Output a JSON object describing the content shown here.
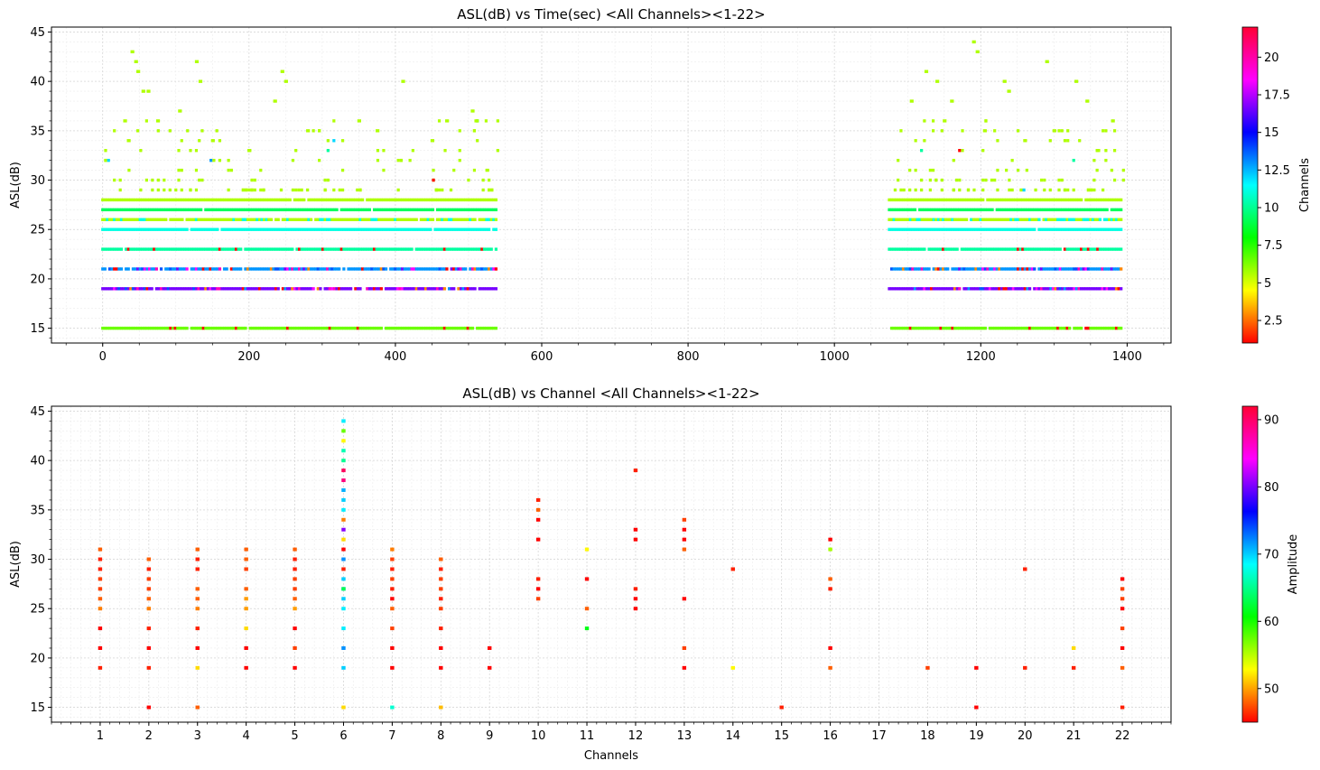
{
  "chart_data": [
    {
      "type": "scatter",
      "title": "ASL(dB) vs Time(sec) <All Channels><1-22>",
      "xlabel": "",
      "ylabel": "ASL(dB)",
      "xlim": [
        -70,
        1460
      ],
      "ylim": [
        13.5,
        45.5
      ],
      "x_ticks": [
        0,
        200,
        400,
        600,
        800,
        1000,
        1200,
        1400
      ],
      "y_ticks": [
        15,
        20,
        25,
        30,
        35,
        40,
        45
      ],
      "grid": true,
      "colorbar": {
        "label": "Channels",
        "min": 1,
        "max": 22,
        "ticks": [
          2.5,
          5.0,
          7.5,
          10.0,
          12.5,
          15.0,
          17.5,
          20.0
        ],
        "cmap": "hsv"
      },
      "bands": [
        {
          "asl": 15,
          "channel": 7,
          "segments": [
            [
              0,
              540
            ],
            [
              1075,
              1395
            ]
          ]
        },
        {
          "asl": 19,
          "channel": 18,
          "segments": [
            [
              0,
              540
            ],
            [
              1075,
              1395
            ]
          ]
        },
        {
          "asl": 21,
          "channel": 14,
          "segments": [
            [
              0,
              540
            ],
            [
              1075,
              1395
            ]
          ]
        },
        {
          "asl": 23,
          "channel": 11,
          "segments": [
            [
              0,
              540
            ],
            [
              1075,
              1395
            ]
          ]
        },
        {
          "asl": 25,
          "channel": 12,
          "segments": [
            [
              0,
              540
            ],
            [
              1075,
              1395
            ]
          ]
        },
        {
          "asl": 26,
          "channel": 6,
          "segments": [
            [
              0,
              540
            ],
            [
              1075,
              1395
            ]
          ]
        },
        {
          "asl": 27,
          "channel": 10,
          "segments": [
            [
              0,
              540
            ],
            [
              1075,
              1395
            ]
          ]
        },
        {
          "asl": 28,
          "channel": 6,
          "segments": [
            [
              0,
              540
            ],
            [
              1075,
              1395
            ]
          ]
        }
      ],
      "peaks": [
        [
          40,
          43
        ],
        [
          45,
          42
        ],
        [
          48,
          41
        ],
        [
          55,
          39
        ],
        [
          62,
          39
        ],
        [
          128,
          42
        ],
        [
          133,
          40
        ],
        [
          245,
          41
        ],
        [
          250,
          40
        ],
        [
          410,
          40
        ],
        [
          505,
          37
        ],
        [
          510,
          36
        ],
        [
          1105,
          38
        ],
        [
          1125,
          41
        ],
        [
          1140,
          40
        ],
        [
          1160,
          38
        ],
        [
          1190,
          44
        ],
        [
          1195,
          43
        ],
        [
          1232,
          40
        ],
        [
          1238,
          39
        ],
        [
          1290,
          42
        ],
        [
          1330,
          40
        ],
        [
          1345,
          38
        ],
        [
          1380,
          36
        ],
        [
          30,
          36
        ],
        [
          35,
          34
        ],
        [
          75,
          36
        ],
        [
          105,
          37
        ],
        [
          150,
          34
        ],
        [
          200,
          33
        ],
        [
          235,
          38
        ],
        [
          280,
          35
        ],
        [
          350,
          36
        ],
        [
          375,
          35
        ],
        [
          450,
          34
        ],
        [
          470,
          36
        ],
        [
          525,
          31
        ],
        [
          1150,
          36
        ],
        [
          1205,
          35
        ],
        [
          1260,
          34
        ],
        [
          1300,
          35
        ],
        [
          1360,
          33
        ]
      ]
    },
    {
      "type": "scatter",
      "title": "ASL(dB) vs Channel <All Channels><1-22>",
      "xlabel": "Channels",
      "ylabel": "ASL(dB)",
      "xlim": [
        0,
        23
      ],
      "ylim": [
        13.5,
        45.5
      ],
      "x_ticks": [
        1,
        2,
        3,
        4,
        5,
        6,
        7,
        8,
        9,
        10,
        11,
        12,
        13,
        14,
        15,
        16,
        17,
        18,
        19,
        20,
        21,
        22
      ],
      "y_ticks": [
        15,
        20,
        25,
        30,
        35,
        40,
        45
      ],
      "grid": true,
      "colorbar": {
        "label": "Amplitude",
        "min": 45,
        "max": 92,
        "ticks": [
          50,
          60,
          70,
          80,
          90
        ],
        "cmap": "hsv"
      },
      "points": [
        [
          1,
          19,
          46
        ],
        [
          1,
          21,
          45
        ],
        [
          1,
          23,
          45
        ],
        [
          1,
          25,
          49
        ],
        [
          1,
          26,
          48
        ],
        [
          1,
          27,
          47
        ],
        [
          1,
          28,
          47
        ],
        [
          1,
          29,
          46
        ],
        [
          1,
          30,
          46
        ],
        [
          1,
          31,
          48
        ],
        [
          2,
          15,
          45
        ],
        [
          2,
          19,
          46
        ],
        [
          2,
          21,
          45
        ],
        [
          2,
          23,
          46
        ],
        [
          2,
          25,
          49
        ],
        [
          2,
          26,
          48
        ],
        [
          2,
          27,
          47
        ],
        [
          2,
          28,
          47
        ],
        [
          2,
          29,
          46
        ],
        [
          2,
          30,
          48
        ],
        [
          3,
          15,
          48
        ],
        [
          3,
          19,
          52
        ],
        [
          3,
          21,
          45
        ],
        [
          3,
          23,
          46
        ],
        [
          3,
          25,
          49
        ],
        [
          3,
          26,
          48
        ],
        [
          3,
          27,
          48
        ],
        [
          3,
          29,
          46
        ],
        [
          3,
          30,
          46
        ],
        [
          3,
          31,
          48
        ],
        [
          4,
          19,
          45
        ],
        [
          4,
          21,
          45
        ],
        [
          4,
          23,
          52
        ],
        [
          4,
          25,
          50
        ],
        [
          4,
          26,
          50
        ],
        [
          4,
          27,
          48
        ],
        [
          4,
          29,
          47
        ],
        [
          4,
          30,
          48
        ],
        [
          4,
          31,
          48
        ],
        [
          5,
          19,
          45
        ],
        [
          5,
          21,
          47
        ],
        [
          5,
          23,
          45
        ],
        [
          5,
          25,
          50
        ],
        [
          5,
          26,
          48
        ],
        [
          5,
          27,
          47
        ],
        [
          5,
          28,
          47
        ],
        [
          5,
          29,
          46
        ],
        [
          5,
          30,
          46
        ],
        [
          5,
          31,
          48
        ],
        [
          6,
          15,
          52
        ],
        [
          6,
          19,
          71
        ],
        [
          6,
          21,
          73
        ],
        [
          6,
          23,
          70
        ],
        [
          6,
          25,
          70
        ],
        [
          6,
          26,
          71
        ],
        [
          6,
          27,
          72
        ],
        [
          6,
          28,
          71
        ],
        [
          6,
          29,
          46
        ],
        [
          6,
          30,
          73
        ],
        [
          6,
          31,
          45
        ],
        [
          6,
          32,
          52
        ],
        [
          6,
          33,
          82
        ],
        [
          6,
          34,
          49
        ],
        [
          6,
          35,
          70
        ],
        [
          6,
          36,
          71
        ],
        [
          6,
          37,
          72
        ],
        [
          6,
          38,
          90
        ],
        [
          6,
          39,
          91
        ],
        [
          6,
          40,
          66
        ],
        [
          6,
          41,
          67
        ],
        [
          6,
          42,
          53
        ],
        [
          6,
          43,
          58
        ],
        [
          6,
          44,
          70
        ],
        [
          6,
          27,
          64
        ],
        [
          7,
          15,
          68
        ],
        [
          7,
          19,
          45
        ],
        [
          7,
          21,
          45
        ],
        [
          7,
          23,
          47
        ],
        [
          7,
          25,
          48
        ],
        [
          7,
          26,
          45
        ],
        [
          7,
          27,
          46
        ],
        [
          7,
          28,
          47
        ],
        [
          7,
          29,
          46
        ],
        [
          7,
          30,
          47
        ],
        [
          7,
          31,
          49
        ],
        [
          8,
          15,
          51
        ],
        [
          8,
          19,
          45
        ],
        [
          8,
          21,
          45
        ],
        [
          8,
          23,
          46
        ],
        [
          8,
          25,
          47
        ],
        [
          8,
          26,
          46
        ],
        [
          8,
          27,
          47
        ],
        [
          8,
          28,
          47
        ],
        [
          8,
          29,
          46
        ],
        [
          8,
          30,
          48
        ],
        [
          9,
          19,
          45
        ],
        [
          9,
          21,
          45
        ],
        [
          10,
          26,
          47
        ],
        [
          10,
          27,
          45
        ],
        [
          10,
          28,
          46
        ],
        [
          10,
          32,
          45
        ],
        [
          10,
          34,
          45
        ],
        [
          10,
          35,
          48
        ],
        [
          10,
          36,
          46
        ],
        [
          11,
          23,
          62
        ],
        [
          11,
          25,
          48
        ],
        [
          11,
          28,
          45
        ],
        [
          11,
          31,
          53
        ],
        [
          12,
          25,
          45
        ],
        [
          12,
          26,
          45
        ],
        [
          12,
          27,
          46
        ],
        [
          12,
          32,
          45
        ],
        [
          12,
          33,
          45
        ],
        [
          12,
          39,
          46
        ],
        [
          13,
          19,
          45
        ],
        [
          13,
          21,
          47
        ],
        [
          13,
          26,
          45
        ],
        [
          13,
          31,
          48
        ],
        [
          13,
          32,
          45
        ],
        [
          13,
          33,
          45
        ],
        [
          13,
          34,
          47
        ],
        [
          14,
          19,
          53
        ],
        [
          14,
          29,
          46
        ],
        [
          15,
          15,
          46
        ],
        [
          16,
          19,
          48
        ],
        [
          16,
          21,
          45
        ],
        [
          16,
          27,
          46
        ],
        [
          16,
          28,
          48
        ],
        [
          16,
          31,
          56
        ],
        [
          16,
          32,
          45
        ],
        [
          18,
          19,
          47
        ],
        [
          19,
          15,
          45
        ],
        [
          19,
          19,
          45
        ],
        [
          20,
          19,
          46
        ],
        [
          20,
          29,
          46
        ],
        [
          21,
          19,
          46
        ],
        [
          21,
          21,
          52
        ],
        [
          22,
          15,
          46
        ],
        [
          22,
          19,
          48
        ],
        [
          22,
          21,
          45
        ],
        [
          22,
          23,
          47
        ],
        [
          22,
          25,
          45
        ],
        [
          22,
          26,
          47
        ],
        [
          22,
          27,
          47
        ],
        [
          22,
          28,
          45
        ]
      ]
    }
  ]
}
